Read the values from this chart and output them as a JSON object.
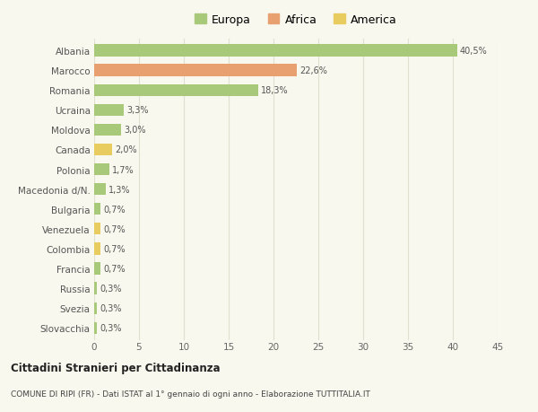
{
  "categories": [
    "Albania",
    "Marocco",
    "Romania",
    "Ucraina",
    "Moldova",
    "Canada",
    "Polonia",
    "Macedonia d/N.",
    "Bulgaria",
    "Venezuela",
    "Colombia",
    "Francia",
    "Russia",
    "Svezia",
    "Slovacchia"
  ],
  "values": [
    40.5,
    22.6,
    18.3,
    3.3,
    3.0,
    2.0,
    1.7,
    1.3,
    0.7,
    0.7,
    0.7,
    0.7,
    0.3,
    0.3,
    0.3
  ],
  "labels": [
    "40,5%",
    "22,6%",
    "18,3%",
    "3,3%",
    "3,0%",
    "2,0%",
    "1,7%",
    "1,3%",
    "0,7%",
    "0,7%",
    "0,7%",
    "0,7%",
    "0,3%",
    "0,3%",
    "0,3%"
  ],
  "continent": [
    "Europa",
    "Africa",
    "Europa",
    "Europa",
    "Europa",
    "America",
    "Europa",
    "Europa",
    "Europa",
    "America",
    "America",
    "Europa",
    "Europa",
    "Europa",
    "Europa"
  ],
  "colors": {
    "Europa": "#a8c87a",
    "Africa": "#e8a070",
    "America": "#e8cc60"
  },
  "legend_entries": [
    "Europa",
    "Africa",
    "America"
  ],
  "legend_colors": [
    "#a8c87a",
    "#e8a070",
    "#e8cc60"
  ],
  "xlim": [
    0,
    45
  ],
  "xticks": [
    0,
    5,
    10,
    15,
    20,
    25,
    30,
    35,
    40,
    45
  ],
  "title_bold": "Cittadini Stranieri per Cittadinanza",
  "subtitle": "COMUNE DI RIPI (FR) - Dati ISTAT al 1° gennaio di ogni anno - Elaborazione TUTTITALIA.IT",
  "background_color": "#f8f8ee",
  "grid_color": "#e0e0d0",
  "bar_height": 0.6
}
